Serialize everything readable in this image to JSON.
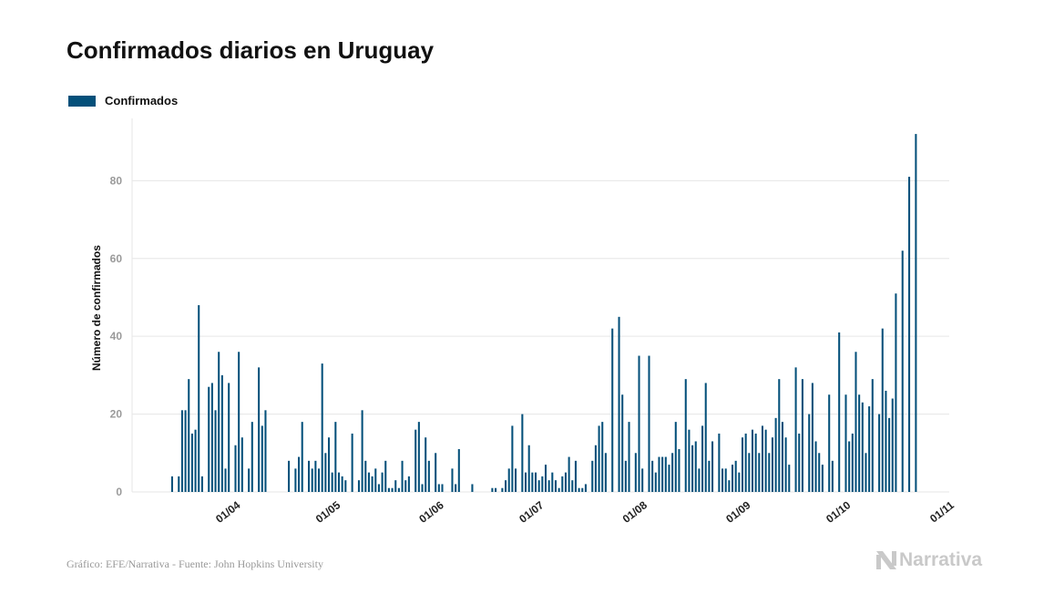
{
  "title": "Confirmados diarios en Uruguay",
  "footer": "Gráfico: EFE/Narrativa - Fuente: John Hopkins University",
  "brand": "Narrativa",
  "colors": {
    "bar": "#04507a",
    "grid": "#e6e6e6",
    "tick": "#9a9a9a"
  },
  "chart_data": {
    "type": "bar",
    "title": "Confirmados diarios en Uruguay",
    "xlabel": "",
    "ylabel": "Número de confirmados",
    "ylim": [
      0,
      96
    ],
    "yticks": [
      0,
      20,
      40,
      60,
      80
    ],
    "xticks": [
      {
        "label": "01/04",
        "date": "2020-04-01"
      },
      {
        "label": "01/05",
        "date": "2020-05-01"
      },
      {
        "label": "01/06",
        "date": "2020-06-01"
      },
      {
        "label": "01/07",
        "date": "2020-07-01"
      },
      {
        "label": "01/08",
        "date": "2020-08-01"
      },
      {
        "label": "01/09",
        "date": "2020-09-01"
      },
      {
        "label": "01/10",
        "date": "2020-10-01"
      },
      {
        "label": "01/11",
        "date": "2020-11-01"
      }
    ],
    "xlim": [
      "2020-03-01",
      "2020-11-01"
    ],
    "grid": true,
    "legend_position": "top-left",
    "series": [
      {
        "name": "Confirmados",
        "points": [
          [
            "2020-03-13",
            4
          ],
          [
            "2020-03-15",
            4
          ],
          [
            "2020-03-16",
            21
          ],
          [
            "2020-03-17",
            21
          ],
          [
            "2020-03-18",
            29
          ],
          [
            "2020-03-19",
            15
          ],
          [
            "2020-03-20",
            16
          ],
          [
            "2020-03-21",
            48
          ],
          [
            "2020-03-22",
            4
          ],
          [
            "2020-03-24",
            27
          ],
          [
            "2020-03-25",
            28
          ],
          [
            "2020-03-26",
            21
          ],
          [
            "2020-03-27",
            36
          ],
          [
            "2020-03-28",
            30
          ],
          [
            "2020-03-29",
            6
          ],
          [
            "2020-03-30",
            28
          ],
          [
            "2020-04-01",
            12
          ],
          [
            "2020-04-02",
            36
          ],
          [
            "2020-04-03",
            14
          ],
          [
            "2020-04-05",
            6
          ],
          [
            "2020-04-06",
            18
          ],
          [
            "2020-04-08",
            32
          ],
          [
            "2020-04-09",
            17
          ],
          [
            "2020-04-10",
            21
          ],
          [
            "2020-04-17",
            8
          ],
          [
            "2020-04-19",
            6
          ],
          [
            "2020-04-20",
            9
          ],
          [
            "2020-04-21",
            18
          ],
          [
            "2020-04-23",
            8
          ],
          [
            "2020-04-24",
            6
          ],
          [
            "2020-04-25",
            8
          ],
          [
            "2020-04-26",
            6
          ],
          [
            "2020-04-27",
            33
          ],
          [
            "2020-04-28",
            10
          ],
          [
            "2020-04-29",
            14
          ],
          [
            "2020-04-30",
            5
          ],
          [
            "2020-05-01",
            18
          ],
          [
            "2020-05-02",
            5
          ],
          [
            "2020-05-03",
            4
          ],
          [
            "2020-05-04",
            3
          ],
          [
            "2020-05-06",
            15
          ],
          [
            "2020-05-08",
            3
          ],
          [
            "2020-05-09",
            21
          ],
          [
            "2020-05-10",
            8
          ],
          [
            "2020-05-11",
            5
          ],
          [
            "2020-05-12",
            4
          ],
          [
            "2020-05-13",
            6
          ],
          [
            "2020-05-14",
            2
          ],
          [
            "2020-05-15",
            5
          ],
          [
            "2020-05-16",
            8
          ],
          [
            "2020-05-17",
            1
          ],
          [
            "2020-05-18",
            1
          ],
          [
            "2020-05-19",
            3
          ],
          [
            "2020-05-20",
            1
          ],
          [
            "2020-05-21",
            8
          ],
          [
            "2020-05-22",
            3
          ],
          [
            "2020-05-23",
            4
          ],
          [
            "2020-05-25",
            16
          ],
          [
            "2020-05-26",
            18
          ],
          [
            "2020-05-27",
            2
          ],
          [
            "2020-05-28",
            14
          ],
          [
            "2020-05-29",
            8
          ],
          [
            "2020-05-31",
            10
          ],
          [
            "2020-06-01",
            2
          ],
          [
            "2020-06-02",
            2
          ],
          [
            "2020-06-05",
            6
          ],
          [
            "2020-06-06",
            2
          ],
          [
            "2020-06-07",
            11
          ],
          [
            "2020-06-11",
            2
          ],
          [
            "2020-06-17",
            1
          ],
          [
            "2020-06-18",
            1
          ],
          [
            "2020-06-20",
            1
          ],
          [
            "2020-06-21",
            3
          ],
          [
            "2020-06-22",
            6
          ],
          [
            "2020-06-23",
            17
          ],
          [
            "2020-06-24",
            6
          ],
          [
            "2020-06-26",
            20
          ],
          [
            "2020-06-27",
            5
          ],
          [
            "2020-06-28",
            12
          ],
          [
            "2020-06-29",
            5
          ],
          [
            "2020-06-30",
            5
          ],
          [
            "2020-07-01",
            3
          ],
          [
            "2020-07-02",
            4
          ],
          [
            "2020-07-03",
            7
          ],
          [
            "2020-07-04",
            3
          ],
          [
            "2020-07-05",
            5
          ],
          [
            "2020-07-06",
            3
          ],
          [
            "2020-07-07",
            1
          ],
          [
            "2020-07-08",
            4
          ],
          [
            "2020-07-09",
            5
          ],
          [
            "2020-07-10",
            9
          ],
          [
            "2020-07-11",
            3
          ],
          [
            "2020-07-12",
            8
          ],
          [
            "2020-07-13",
            1
          ],
          [
            "2020-07-14",
            1
          ],
          [
            "2020-07-15",
            2
          ],
          [
            "2020-07-17",
            8
          ],
          [
            "2020-07-18",
            12
          ],
          [
            "2020-07-19",
            17
          ],
          [
            "2020-07-20",
            18
          ],
          [
            "2020-07-21",
            10
          ],
          [
            "2020-07-23",
            42
          ],
          [
            "2020-07-25",
            45
          ],
          [
            "2020-07-26",
            25
          ],
          [
            "2020-07-27",
            8
          ],
          [
            "2020-07-28",
            18
          ],
          [
            "2020-07-30",
            10
          ],
          [
            "2020-07-31",
            35
          ],
          [
            "2020-08-01",
            6
          ],
          [
            "2020-08-03",
            35
          ],
          [
            "2020-08-04",
            8
          ],
          [
            "2020-08-05",
            5
          ],
          [
            "2020-08-06",
            9
          ],
          [
            "2020-08-07",
            9
          ],
          [
            "2020-08-08",
            9
          ],
          [
            "2020-08-09",
            7
          ],
          [
            "2020-08-10",
            10
          ],
          [
            "2020-08-11",
            18
          ],
          [
            "2020-08-12",
            11
          ],
          [
            "2020-08-14",
            29
          ],
          [
            "2020-08-15",
            16
          ],
          [
            "2020-08-16",
            12
          ],
          [
            "2020-08-17",
            13
          ],
          [
            "2020-08-18",
            6
          ],
          [
            "2020-08-19",
            17
          ],
          [
            "2020-08-20",
            28
          ],
          [
            "2020-08-21",
            8
          ],
          [
            "2020-08-22",
            13
          ],
          [
            "2020-08-24",
            15
          ],
          [
            "2020-08-25",
            6
          ],
          [
            "2020-08-26",
            6
          ],
          [
            "2020-08-27",
            3
          ],
          [
            "2020-08-28",
            7
          ],
          [
            "2020-08-29",
            8
          ],
          [
            "2020-08-30",
            5
          ],
          [
            "2020-08-31",
            14
          ],
          [
            "2020-09-01",
            15
          ],
          [
            "2020-09-02",
            10
          ],
          [
            "2020-09-03",
            16
          ],
          [
            "2020-09-04",
            15
          ],
          [
            "2020-09-05",
            10
          ],
          [
            "2020-09-06",
            17
          ],
          [
            "2020-09-07",
            16
          ],
          [
            "2020-09-08",
            10
          ],
          [
            "2020-09-09",
            14
          ],
          [
            "2020-09-10",
            19
          ],
          [
            "2020-09-11",
            29
          ],
          [
            "2020-09-12",
            18
          ],
          [
            "2020-09-13",
            14
          ],
          [
            "2020-09-14",
            7
          ],
          [
            "2020-09-16",
            32
          ],
          [
            "2020-09-17",
            15
          ],
          [
            "2020-09-18",
            29
          ],
          [
            "2020-09-20",
            20
          ],
          [
            "2020-09-21",
            28
          ],
          [
            "2020-09-22",
            13
          ],
          [
            "2020-09-23",
            10
          ],
          [
            "2020-09-24",
            7
          ],
          [
            "2020-09-26",
            25
          ],
          [
            "2020-09-27",
            8
          ],
          [
            "2020-09-29",
            41
          ],
          [
            "2020-10-01",
            25
          ],
          [
            "2020-10-02",
            13
          ],
          [
            "2020-10-03",
            15
          ],
          [
            "2020-10-04",
            36
          ],
          [
            "2020-10-05",
            25
          ],
          [
            "2020-10-06",
            23
          ],
          [
            "2020-10-07",
            10
          ],
          [
            "2020-10-08",
            22
          ],
          [
            "2020-10-09",
            29
          ],
          [
            "2020-10-11",
            20
          ],
          [
            "2020-10-12",
            42
          ],
          [
            "2020-10-13",
            26
          ],
          [
            "2020-10-14",
            19
          ],
          [
            "2020-10-15",
            24
          ],
          [
            "2020-10-16",
            51
          ],
          [
            "2020-10-18",
            62
          ],
          [
            "2020-10-20",
            81
          ],
          [
            "2020-10-22",
            92
          ]
        ]
      }
    ]
  }
}
